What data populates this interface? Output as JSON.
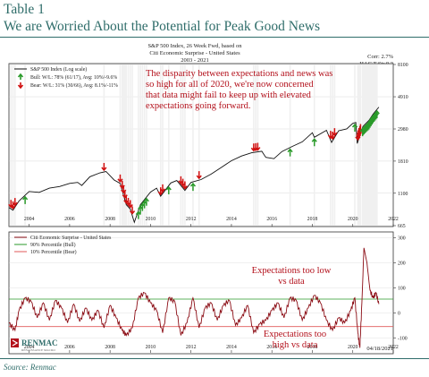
{
  "header": {
    "table_label": "Table 1",
    "title": "We are Worried About the Potential for Peak Good News"
  },
  "source": "Source:  Renmac",
  "figure": {
    "title_lines": [
      "S&P 500 Index, 26 Week Fwd, based on",
      "Citi Economic Surprise - United States",
      "2003 - 2021"
    ],
    "corr": "Corr:   2.7%",
    "hac": "HAC T-St:   0.3",
    "date": "04/18/2021",
    "logo": "RENMAC",
    "logo_sub": "RENAISSANCE MACRO"
  },
  "chart_data": [
    {
      "type": "line",
      "scale": "log",
      "legend": [
        "S&P 500 Index (Log scale)",
        "Bull:  W/L: 78% (61/17), Avg: 10%/-9.6%",
        "Bear:  W/L: 31% (30/66), Avg: 8.1%/-11%"
      ],
      "annotation": "The disparity between expectations and news was so high for all of 2020, we're now concerned that data might fail to keep up with elevated expectations going forward.",
      "y_ticks": [
        665,
        1100,
        1810,
        2980,
        4910,
        8100
      ],
      "x_ticks": [
        "2004",
        "2006",
        "2008",
        "2010",
        "2012",
        "2014",
        "2016",
        "2018",
        "2020",
        "2022"
      ],
      "ylim": [
        665,
        8100
      ],
      "xlim": [
        2003,
        2022
      ],
      "series": [
        {
          "name": "S&P 500 Index (Log scale)",
          "x": [
            2003.0,
            2003.2,
            2003.5,
            2004.0,
            2004.5,
            2005.0,
            2005.5,
            2006.0,
            2006.4,
            2006.6,
            2007.0,
            2007.5,
            2007.8,
            2008.2,
            2008.5,
            2008.8,
            2009.0,
            2009.2,
            2009.5,
            2010.0,
            2010.3,
            2010.5,
            2011.0,
            2011.3,
            2011.7,
            2012.0,
            2012.5,
            2013.0,
            2013.5,
            2014.0,
            2014.5,
            2015.0,
            2015.5,
            2015.7,
            2016.1,
            2016.5,
            2017.0,
            2017.5,
            2018.0,
            2018.1,
            2018.7,
            2018.95,
            2019.3,
            2019.7,
            2020.0,
            2020.15,
            2020.22,
            2020.5,
            2020.8,
            2021.0,
            2021.29
          ],
          "y": [
            880,
            845,
            975,
            1130,
            1115,
            1190,
            1220,
            1280,
            1300,
            1240,
            1420,
            1510,
            1540,
            1350,
            1280,
            920,
            860,
            700,
            920,
            1120,
            1190,
            1050,
            1290,
            1340,
            1150,
            1300,
            1360,
            1480,
            1640,
            1820,
            1960,
            2060,
            2110,
            1920,
            1880,
            2100,
            2270,
            2440,
            2810,
            2620,
            2920,
            2420,
            2900,
            2980,
            3250,
            3300,
            2380,
            3100,
            3400,
            3750,
            4180
          ]
        }
      ]
    },
    {
      "type": "line",
      "legend": [
        "Citi Economic Surprise - United States",
        "90% Percentile (Bull)",
        "10% Percentile (Bear)"
      ],
      "y_ticks": [
        -100,
        0,
        100,
        200,
        300
      ],
      "x_ticks": [
        "2004",
        "2006",
        "2008",
        "2010",
        "2012",
        "2014",
        "2016",
        "2018",
        "2020",
        "2022"
      ],
      "ylim": [
        -160,
        320
      ],
      "xlim": [
        2003,
        2022
      ],
      "thresholds": {
        "bull": 55,
        "bear": -55
      },
      "annotations": [
        "Expectations too low vs data",
        "Expectations too high vs data"
      ],
      "series": [
        {
          "name": "Citi Economic Surprise - United States",
          "x": [
            2003.0,
            2003.3,
            2003.5,
            2003.8,
            2004.1,
            2004.4,
            2004.7,
            2005.0,
            2005.3,
            2005.6,
            2005.9,
            2006.2,
            2006.5,
            2006.8,
            2007.1,
            2007.4,
            2007.7,
            2008.0,
            2008.3,
            2008.6,
            2008.8,
            2009.1,
            2009.4,
            2009.7,
            2010.0,
            2010.3,
            2010.6,
            2010.9,
            2011.2,
            2011.5,
            2011.8,
            2012.1,
            2012.4,
            2012.7,
            2013.0,
            2013.3,
            2013.6,
            2013.9,
            2014.2,
            2014.5,
            2014.8,
            2015.1,
            2015.4,
            2015.7,
            2016.0,
            2016.3,
            2016.6,
            2016.9,
            2017.2,
            2017.5,
            2017.8,
            2018.1,
            2018.4,
            2018.7,
            2019.0,
            2019.3,
            2019.6,
            2019.9,
            2020.1,
            2020.25,
            2020.35,
            2020.45,
            2020.55,
            2020.7,
            2020.85,
            2021.0,
            2021.15,
            2021.29
          ],
          "y": [
            -40,
            -70,
            10,
            60,
            45,
            -20,
            40,
            -30,
            50,
            20,
            -40,
            35,
            -35,
            20,
            -30,
            10,
            -60,
            30,
            -20,
            -70,
            -90,
            -60,
            60,
            80,
            40,
            10,
            -80,
            60,
            45,
            -90,
            -40,
            60,
            -60,
            20,
            40,
            -30,
            30,
            50,
            -50,
            -20,
            30,
            -80,
            -45,
            -30,
            10,
            40,
            -20,
            60,
            50,
            -30,
            20,
            70,
            40,
            -30,
            -70,
            -20,
            -40,
            10,
            60,
            -80,
            -140,
            40,
            260,
            200,
            90,
            60,
            80,
            35
          ]
        }
      ]
    }
  ]
}
